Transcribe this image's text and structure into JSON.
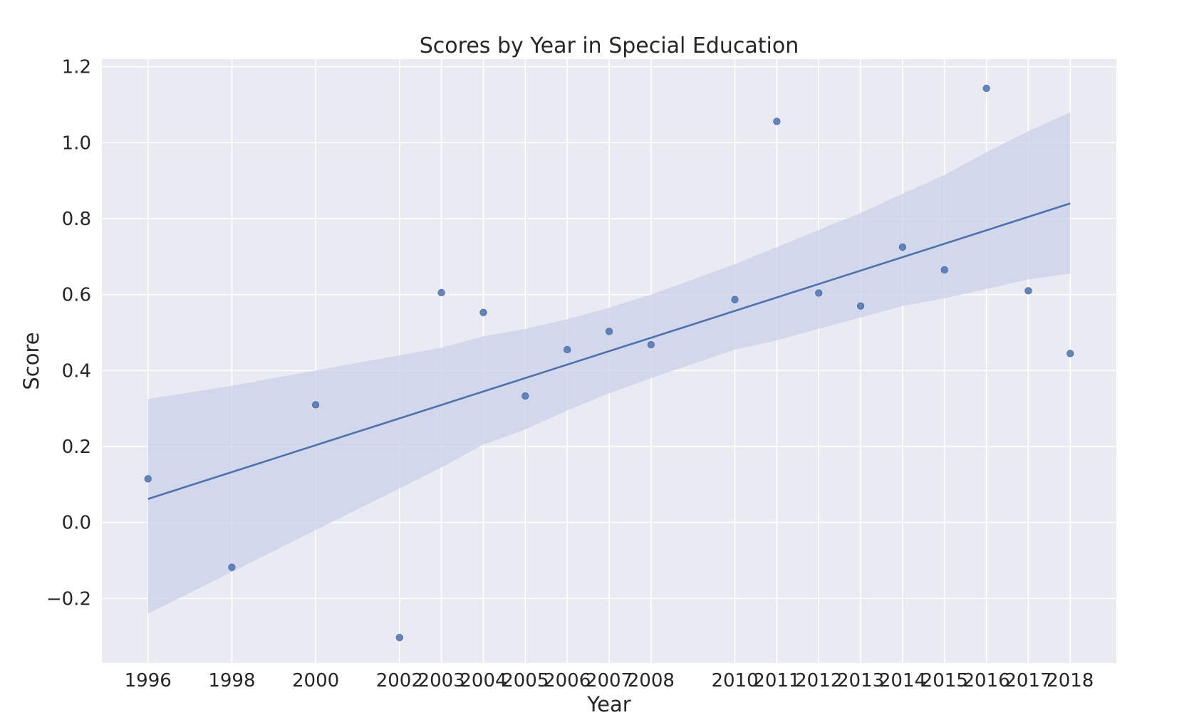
{
  "chart_data": {
    "type": "scatter",
    "title": "Scores by Year in Special Education",
    "xlabel": "Year",
    "ylabel": "Score",
    "xlim": [
      1994.9,
      2019.1
    ],
    "ylim": [
      -0.37,
      1.22
    ],
    "grid": true,
    "x_ticks": [
      1996,
      1998,
      2000,
      2002,
      2003,
      2004,
      2005,
      2006,
      2007,
      2008,
      2010,
      2011,
      2012,
      2013,
      2014,
      2015,
      2016,
      2017,
      2018
    ],
    "y_ticks": [
      -0.2,
      0.0,
      0.2,
      0.4,
      0.6,
      0.8,
      1.0,
      1.2
    ],
    "y_tick_labels": [
      "−0.2",
      "0.0",
      "0.2",
      "0.4",
      "0.6",
      "0.8",
      "1.0",
      "1.2"
    ],
    "series": [
      {
        "x": [
          1996,
          1998,
          2000,
          2002,
          2003,
          2004,
          2005,
          2006,
          2007,
          2008,
          2010,
          2011,
          2012,
          2013,
          2014,
          2015,
          2016,
          2017,
          2018
        ],
        "y": [
          0.115,
          -0.118,
          0.31,
          -0.303,
          0.605,
          0.553,
          0.333,
          0.455,
          0.503,
          0.468,
          0.587,
          1.056,
          0.604,
          0.57,
          0.725,
          0.665,
          1.143,
          0.61,
          0.445
        ]
      }
    ],
    "regression_line": {
      "x": [
        1996,
        2018
      ],
      "y": [
        0.062,
        0.84
      ]
    },
    "confidence_band": {
      "x": [
        1996,
        1998,
        2000,
        2002,
        2003,
        2004,
        2005,
        2006,
        2007,
        2008,
        2010,
        2011,
        2012,
        2013,
        2014,
        2015,
        2016,
        2017,
        2018
      ],
      "lower": [
        -0.24,
        -0.13,
        -0.02,
        0.09,
        0.145,
        0.205,
        0.245,
        0.295,
        0.34,
        0.38,
        0.455,
        0.48,
        0.51,
        0.54,
        0.57,
        0.59,
        0.615,
        0.64,
        0.655
      ],
      "upper": [
        0.325,
        0.36,
        0.4,
        0.44,
        0.46,
        0.49,
        0.51,
        0.535,
        0.565,
        0.6,
        0.68,
        0.725,
        0.77,
        0.815,
        0.865,
        0.915,
        0.975,
        1.03,
        1.08
      ]
    },
    "colors": {
      "plot_background": "#eaeaf2",
      "grid": "#ffffff",
      "points": "#4c72b0",
      "line": "#4c72b0",
      "band": "#c9d0e8"
    }
  }
}
